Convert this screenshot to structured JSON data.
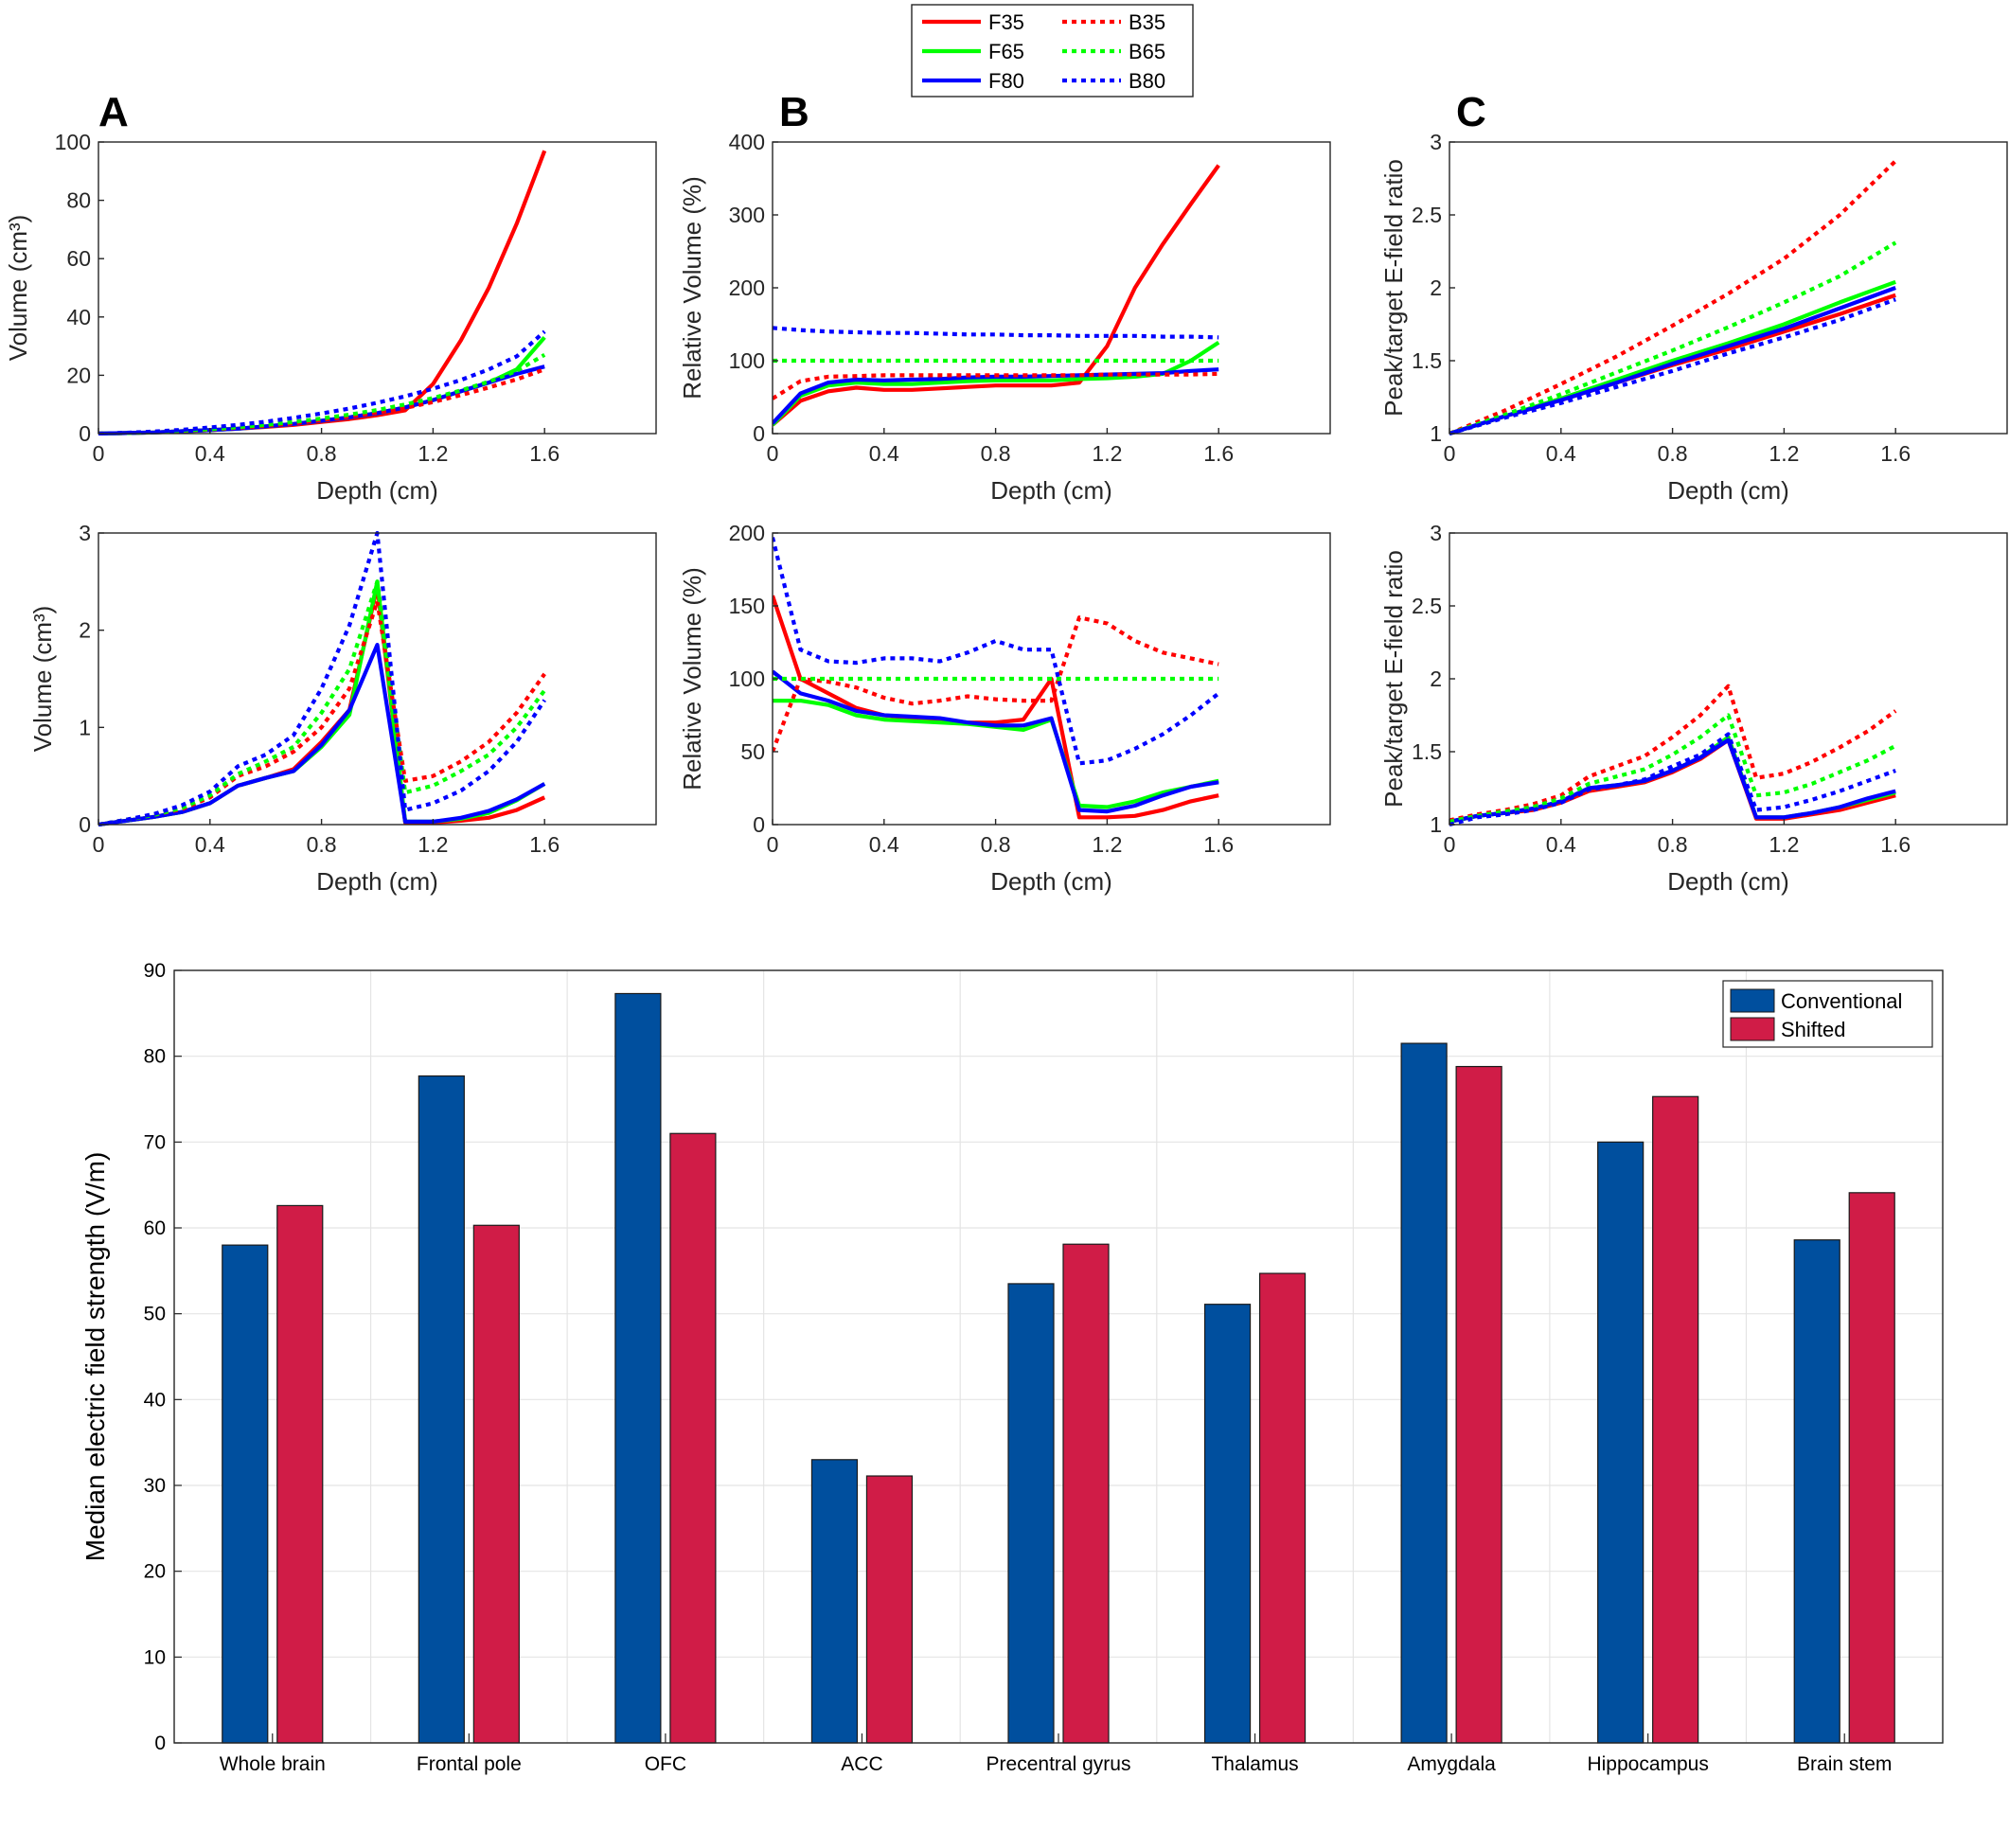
{
  "legend": {
    "entries": [
      {
        "name": "F35",
        "color": "#ff0000",
        "style": "solid"
      },
      {
        "name": "F65",
        "color": "#00ff00",
        "style": "solid"
      },
      {
        "name": "F80",
        "color": "#0000ff",
        "style": "solid"
      },
      {
        "name": "B35",
        "color": "#ff0000",
        "style": "dotted"
      },
      {
        "name": "B65",
        "color": "#00ff00",
        "style": "dotted"
      },
      {
        "name": "B80",
        "color": "#0000ff",
        "style": "dotted"
      }
    ]
  },
  "panel_labels": [
    "A",
    "B",
    "C"
  ],
  "chart_data": [
    {
      "id": "A-top",
      "type": "line",
      "panel": "A",
      "xlabel": "Depth (cm)",
      "ylabel": "Volume (cm³)",
      "xlim": [
        0,
        2
      ],
      "ylim": [
        0,
        100
      ],
      "xticks": [
        "0",
        "0.4",
        "0.8",
        "1.2",
        "1.6"
      ],
      "xtick_values": [
        0,
        0.4,
        0.8,
        1.2,
        1.6
      ],
      "yticks": [
        "0",
        "20",
        "40",
        "60",
        "80",
        "100"
      ],
      "ytick_values": [
        0,
        20,
        40,
        60,
        80,
        100
      ],
      "x": [
        0,
        0.1,
        0.2,
        0.3,
        0.4,
        0.5,
        0.6,
        0.7,
        0.8,
        0.9,
        1.0,
        1.1,
        1.2,
        1.3,
        1.4,
        1.5,
        1.6
      ],
      "series": [
        {
          "name": "F35",
          "values": [
            0,
            0.2,
            0.4,
            0.8,
            1.2,
            1.7,
            2.3,
            3.0,
            4.0,
            5.0,
            6.3,
            8.0,
            17,
            32,
            50,
            72,
            97
          ]
        },
        {
          "name": "F65",
          "values": [
            0,
            0.2,
            0.4,
            0.8,
            1.2,
            1.7,
            2.5,
            3.3,
            4.4,
            5.6,
            7.0,
            9.0,
            11.5,
            14.5,
            17.5,
            22,
            33
          ]
        },
        {
          "name": "F80",
          "values": [
            0,
            0.2,
            0.4,
            0.8,
            1.2,
            1.7,
            2.5,
            3.3,
            4.4,
            5.6,
            7.0,
            9.0,
            11.5,
            14.5,
            17.5,
            20.5,
            23
          ]
        },
        {
          "name": "B35",
          "values": [
            0,
            0.2,
            0.5,
            0.9,
            1.4,
            2.0,
            2.7,
            3.5,
            4.6,
            5.8,
            7.2,
            8.8,
            10.8,
            13.2,
            15.8,
            18.6,
            22
          ]
        },
        {
          "name": "B65",
          "values": [
            0,
            0.2,
            0.5,
            1.0,
            1.5,
            2.2,
            3.0,
            4.0,
            5.2,
            6.5,
            8.1,
            10,
            12.2,
            14.8,
            17.8,
            21.5,
            27
          ]
        },
        {
          "name": "B80",
          "values": [
            0,
            0.3,
            0.7,
            1.3,
            2.1,
            3.0,
            4.1,
            5.4,
            6.9,
            8.6,
            10.6,
            12.8,
            15.4,
            18.4,
            22,
            26.5,
            35
          ]
        }
      ]
    },
    {
      "id": "B-top",
      "type": "line",
      "panel": "B",
      "xlabel": "Depth (cm)",
      "ylabel": "Relative Volume (%)",
      "xlim": [
        0,
        2
      ],
      "ylim": [
        0,
        400
      ],
      "xticks": [
        "0",
        "0.4",
        "0.8",
        "1.2",
        "1.6"
      ],
      "xtick_values": [
        0,
        0.4,
        0.8,
        1.2,
        1.6
      ],
      "yticks": [
        "0",
        "100",
        "200",
        "300",
        "400"
      ],
      "ytick_values": [
        0,
        100,
        200,
        300,
        400
      ],
      "x": [
        0,
        0.1,
        0.2,
        0.3,
        0.4,
        0.5,
        0.6,
        0.7,
        0.8,
        0.9,
        1.0,
        1.1,
        1.2,
        1.3,
        1.4,
        1.5,
        1.6
      ],
      "series": [
        {
          "name": "F35",
          "values": [
            12,
            45,
            58,
            63,
            60,
            60,
            62,
            64,
            66,
            66,
            66,
            70,
            120,
            200,
            260,
            315,
            368
          ]
        },
        {
          "name": "F65",
          "values": [
            12,
            52,
            66,
            70,
            68,
            68,
            70,
            72,
            73,
            73,
            73,
            75,
            76,
            78,
            82,
            100,
            125
          ]
        },
        {
          "name": "F80",
          "values": [
            14,
            55,
            70,
            74,
            73,
            74,
            75,
            77,
            78,
            78,
            79,
            80,
            81,
            82,
            83,
            86,
            88
          ]
        },
        {
          "name": "B35",
          "values": [
            48,
            72,
            78,
            79,
            80,
            80,
            80,
            80,
            80,
            80,
            80,
            80,
            81,
            81,
            81,
            81,
            82
          ]
        },
        {
          "name": "B65",
          "values": [
            100,
            100,
            100,
            100,
            100,
            100,
            100,
            100,
            100,
            100,
            100,
            100,
            100,
            100,
            100,
            100,
            100
          ]
        },
        {
          "name": "B80",
          "values": [
            145,
            142,
            140,
            139,
            138,
            138,
            137,
            136,
            136,
            135,
            135,
            134,
            134,
            134,
            133,
            133,
            132
          ]
        }
      ]
    },
    {
      "id": "C-top",
      "type": "line",
      "panel": "C",
      "xlabel": "Depth (cm)",
      "ylabel": "Peak/target E-field ratio",
      "xlim": [
        0,
        2
      ],
      "ylim": [
        1,
        3
      ],
      "xticks": [
        "0",
        "0.4",
        "0.8",
        "1.2",
        "1.6"
      ],
      "xtick_values": [
        0,
        0.4,
        0.8,
        1.2,
        1.6
      ],
      "yticks": [
        "1",
        "1.5",
        "2",
        "2.5",
        "3"
      ],
      "ytick_values": [
        1,
        1.5,
        2,
        2.5,
        3
      ],
      "x": [
        0,
        0.2,
        0.4,
        0.6,
        0.8,
        1.0,
        1.2,
        1.4,
        1.6
      ],
      "series": [
        {
          "name": "F35",
          "values": [
            1.0,
            1.12,
            1.23,
            1.35,
            1.47,
            1.58,
            1.7,
            1.82,
            1.95
          ]
        },
        {
          "name": "F65",
          "values": [
            1.0,
            1.12,
            1.24,
            1.37,
            1.5,
            1.62,
            1.75,
            1.9,
            2.04
          ]
        },
        {
          "name": "F80",
          "values": [
            1.0,
            1.12,
            1.23,
            1.35,
            1.48,
            1.6,
            1.72,
            1.86,
            2.0
          ]
        },
        {
          "name": "B35",
          "values": [
            1.0,
            1.16,
            1.34,
            1.53,
            1.74,
            1.96,
            2.2,
            2.5,
            2.87
          ]
        },
        {
          "name": "B65",
          "values": [
            1.0,
            1.13,
            1.27,
            1.42,
            1.57,
            1.73,
            1.9,
            2.08,
            2.31
          ]
        },
        {
          "name": "B80",
          "values": [
            1.0,
            1.11,
            1.21,
            1.32,
            1.43,
            1.55,
            1.66,
            1.78,
            1.92
          ]
        }
      ]
    },
    {
      "id": "A-bottom",
      "type": "line",
      "panel": "A",
      "xlabel": "Depth (cm)",
      "ylabel": "Volume (cm³)",
      "xlim": [
        0,
        2
      ],
      "ylim": [
        0,
        3
      ],
      "xticks": [
        "0",
        "0.4",
        "0.8",
        "1.2",
        "1.6"
      ],
      "xtick_values": [
        0,
        0.4,
        0.8,
        1.2,
        1.6
      ],
      "yticks": [
        "0",
        "1",
        "2",
        "3"
      ],
      "ytick_values": [
        0,
        1,
        2,
        3
      ],
      "x": [
        0,
        0.1,
        0.2,
        0.3,
        0.4,
        0.5,
        0.6,
        0.7,
        0.8,
        0.9,
        1.0,
        1.1,
        1.2,
        1.3,
        1.4,
        1.5,
        1.6
      ],
      "series": [
        {
          "name": "F35",
          "values": [
            0,
            0.04,
            0.08,
            0.13,
            0.22,
            0.4,
            0.48,
            0.57,
            0.85,
            1.18,
            2.45,
            0.02,
            0.02,
            0.04,
            0.07,
            0.15,
            0.28
          ]
        },
        {
          "name": "F65",
          "values": [
            0,
            0.04,
            0.08,
            0.13,
            0.22,
            0.4,
            0.48,
            0.55,
            0.8,
            1.13,
            2.5,
            0.03,
            0.03,
            0.06,
            0.12,
            0.25,
            0.42
          ]
        },
        {
          "name": "F80",
          "values": [
            0,
            0.04,
            0.08,
            0.13,
            0.22,
            0.4,
            0.48,
            0.55,
            0.82,
            1.18,
            1.85,
            0.03,
            0.03,
            0.07,
            0.14,
            0.26,
            0.42
          ]
        },
        {
          "name": "B35",
          "values": [
            0,
            0.05,
            0.1,
            0.16,
            0.28,
            0.5,
            0.6,
            0.75,
            1.0,
            1.4,
            2.3,
            0.45,
            0.5,
            0.65,
            0.85,
            1.15,
            1.55
          ]
        },
        {
          "name": "B65",
          "values": [
            0,
            0.05,
            0.1,
            0.17,
            0.3,
            0.52,
            0.65,
            0.8,
            1.15,
            1.6,
            2.5,
            0.33,
            0.4,
            0.55,
            0.72,
            1.0,
            1.38
          ]
        },
        {
          "name": "B80",
          "values": [
            0,
            0.05,
            0.11,
            0.2,
            0.34,
            0.6,
            0.72,
            0.92,
            1.4,
            2.05,
            3.0,
            0.15,
            0.22,
            0.35,
            0.55,
            0.85,
            1.28
          ]
        }
      ]
    },
    {
      "id": "B-bottom",
      "type": "line",
      "panel": "B",
      "xlabel": "Depth (cm)",
      "ylabel": "Relative Volume (%)",
      "xlim": [
        0,
        2
      ],
      "ylim": [
        0,
        200
      ],
      "xticks": [
        "0",
        "0.4",
        "0.8",
        "1.2",
        "1.6"
      ],
      "xtick_values": [
        0,
        0.4,
        0.8,
        1.2,
        1.6
      ],
      "yticks": [
        "0",
        "50",
        "100",
        "150",
        "200"
      ],
      "ytick_values": [
        0,
        50,
        100,
        150,
        200
      ],
      "x": [
        0,
        0.1,
        0.2,
        0.3,
        0.4,
        0.5,
        0.6,
        0.7,
        0.8,
        0.9,
        1.0,
        1.1,
        1.2,
        1.3,
        1.4,
        1.5,
        1.6
      ],
      "series": [
        {
          "name": "F35",
          "values": [
            157,
            100,
            90,
            80,
            75,
            73,
            72,
            70,
            70,
            72,
            100,
            5,
            5,
            6,
            10,
            16,
            20
          ]
        },
        {
          "name": "F65",
          "values": [
            85,
            85,
            82,
            75,
            72,
            71,
            70,
            69,
            67,
            65,
            72,
            13,
            12,
            16,
            22,
            26,
            30
          ]
        },
        {
          "name": "F80",
          "values": [
            105,
            90,
            85,
            78,
            75,
            74,
            73,
            70,
            68,
            68,
            73,
            10,
            9,
            13,
            20,
            26,
            29
          ]
        },
        {
          "name": "B35",
          "values": [
            50,
            100,
            98,
            94,
            87,
            83,
            85,
            88,
            86,
            85,
            85,
            142,
            138,
            126,
            118,
            114,
            110
          ]
        },
        {
          "name": "B65",
          "values": [
            100,
            100,
            100,
            100,
            100,
            100,
            100,
            100,
            100,
            100,
            100,
            100,
            100,
            100,
            100,
            100,
            100
          ]
        },
        {
          "name": "B80",
          "values": [
            197,
            120,
            112,
            111,
            114,
            114,
            112,
            118,
            126,
            120,
            120,
            42,
            44,
            52,
            62,
            75,
            90
          ]
        }
      ]
    },
    {
      "id": "C-bottom",
      "type": "line",
      "panel": "C",
      "xlabel": "Depth (cm)",
      "ylabel": "Peak/target E-field ratio",
      "xlim": [
        0,
        2
      ],
      "ylim": [
        1,
        3
      ],
      "xticks": [
        "0",
        "0.4",
        "0.8",
        "1.2",
        "1.6"
      ],
      "xtick_values": [
        0,
        0.4,
        0.8,
        1.2,
        1.6
      ],
      "yticks": [
        "1",
        "1.5",
        "2",
        "2.5",
        "3"
      ],
      "ytick_values": [
        1,
        1.5,
        2,
        2.5,
        3
      ],
      "x": [
        0,
        0.1,
        0.2,
        0.3,
        0.4,
        0.5,
        0.6,
        0.7,
        0.8,
        0.9,
        1.0,
        1.1,
        1.2,
        1.3,
        1.4,
        1.5,
        1.6
      ],
      "series": [
        {
          "name": "F35",
          "values": [
            1.02,
            1.06,
            1.08,
            1.1,
            1.15,
            1.23,
            1.26,
            1.29,
            1.36,
            1.45,
            1.58,
            1.04,
            1.04,
            1.07,
            1.1,
            1.15,
            1.2
          ]
        },
        {
          "name": "F65",
          "values": [
            1.02,
            1.06,
            1.08,
            1.11,
            1.16,
            1.25,
            1.27,
            1.3,
            1.37,
            1.46,
            1.6,
            1.05,
            1.05,
            1.08,
            1.12,
            1.17,
            1.22
          ]
        },
        {
          "name": "F80",
          "values": [
            1.02,
            1.06,
            1.08,
            1.11,
            1.16,
            1.25,
            1.27,
            1.3,
            1.37,
            1.46,
            1.58,
            1.05,
            1.05,
            1.08,
            1.12,
            1.18,
            1.23
          ]
        },
        {
          "name": "B35",
          "values": [
            1.03,
            1.07,
            1.1,
            1.14,
            1.2,
            1.33,
            1.4,
            1.47,
            1.6,
            1.75,
            1.95,
            1.32,
            1.35,
            1.43,
            1.53,
            1.64,
            1.78
          ]
        },
        {
          "name": "B65",
          "values": [
            1.02,
            1.06,
            1.09,
            1.12,
            1.18,
            1.28,
            1.33,
            1.38,
            1.48,
            1.6,
            1.75,
            1.2,
            1.22,
            1.28,
            1.36,
            1.44,
            1.54
          ]
        },
        {
          "name": "B80",
          "values": [
            1.0,
            1.05,
            1.07,
            1.1,
            1.15,
            1.24,
            1.27,
            1.31,
            1.4,
            1.48,
            1.62,
            1.1,
            1.12,
            1.17,
            1.23,
            1.3,
            1.37
          ]
        }
      ]
    },
    {
      "id": "bar",
      "type": "bar",
      "xlabel": "",
      "ylabel": "Median electric field strength (V/m)",
      "ylim": [
        0,
        90
      ],
      "yticks": [
        "0",
        "10",
        "20",
        "30",
        "40",
        "50",
        "60",
        "70",
        "80",
        "90"
      ],
      "ytick_values": [
        0,
        10,
        20,
        30,
        40,
        50,
        60,
        70,
        80,
        90
      ],
      "legend_position": "top-right",
      "categories": [
        "Whole brain",
        "Frontal pole",
        "OFC",
        "ACC",
        "Precentral gyrus",
        "Thalamus",
        "Amygdala",
        "Hippocampus",
        "Brain stem"
      ],
      "series": [
        {
          "name": "Conventional",
          "color": "#004f9e",
          "values": [
            58.0,
            77.7,
            87.3,
            33.0,
            53.5,
            51.1,
            81.5,
            70.0,
            58.6
          ]
        },
        {
          "name": "Shifted",
          "color": "#d01c47",
          "values": [
            62.6,
            60.3,
            71.0,
            31.1,
            58.1,
            54.7,
            78.8,
            75.3,
            64.1
          ]
        }
      ]
    }
  ]
}
